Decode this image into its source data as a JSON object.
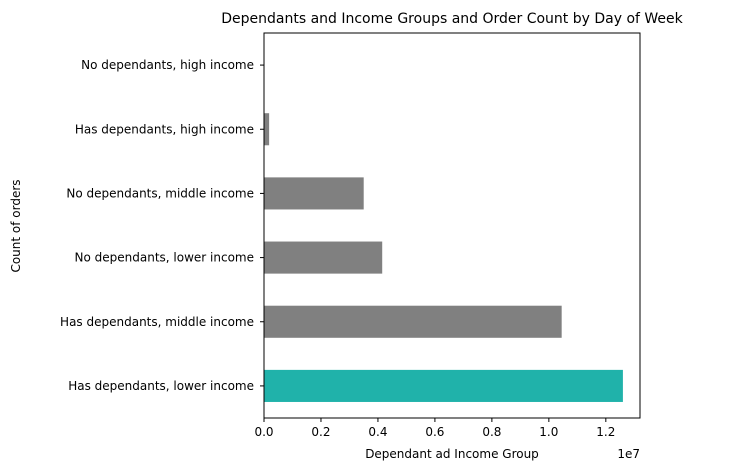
{
  "chart_data": {
    "type": "bar",
    "orientation": "horizontal",
    "title": "Dependants and Income Groups and Order Count by Day of Week",
    "xlabel": "Dependant ad Income Group",
    "ylabel": "Count of orders",
    "x_offset_label": "1e7",
    "xlim": [
      0,
      1.32
    ],
    "x_ticks": [
      0.0,
      0.2,
      0.4,
      0.6,
      0.8,
      1.0,
      1.2
    ],
    "x_tick_labels": [
      "0.0",
      "0.2",
      "0.4",
      "0.6",
      "0.8",
      "1.0",
      "1.2"
    ],
    "categories": [
      "Has dependants, lower income",
      "Has dependants, middle income",
      "No dependants, lower income",
      "No dependants, middle income",
      "Has dependants, high income",
      "No dependants, high income"
    ],
    "values": [
      1.26,
      1.045,
      0.415,
      0.35,
      0.018,
      0.0
    ],
    "colors": [
      "#20b2aa",
      "#808080",
      "#808080",
      "#808080",
      "#808080",
      "#808080"
    ],
    "grid": false
  }
}
